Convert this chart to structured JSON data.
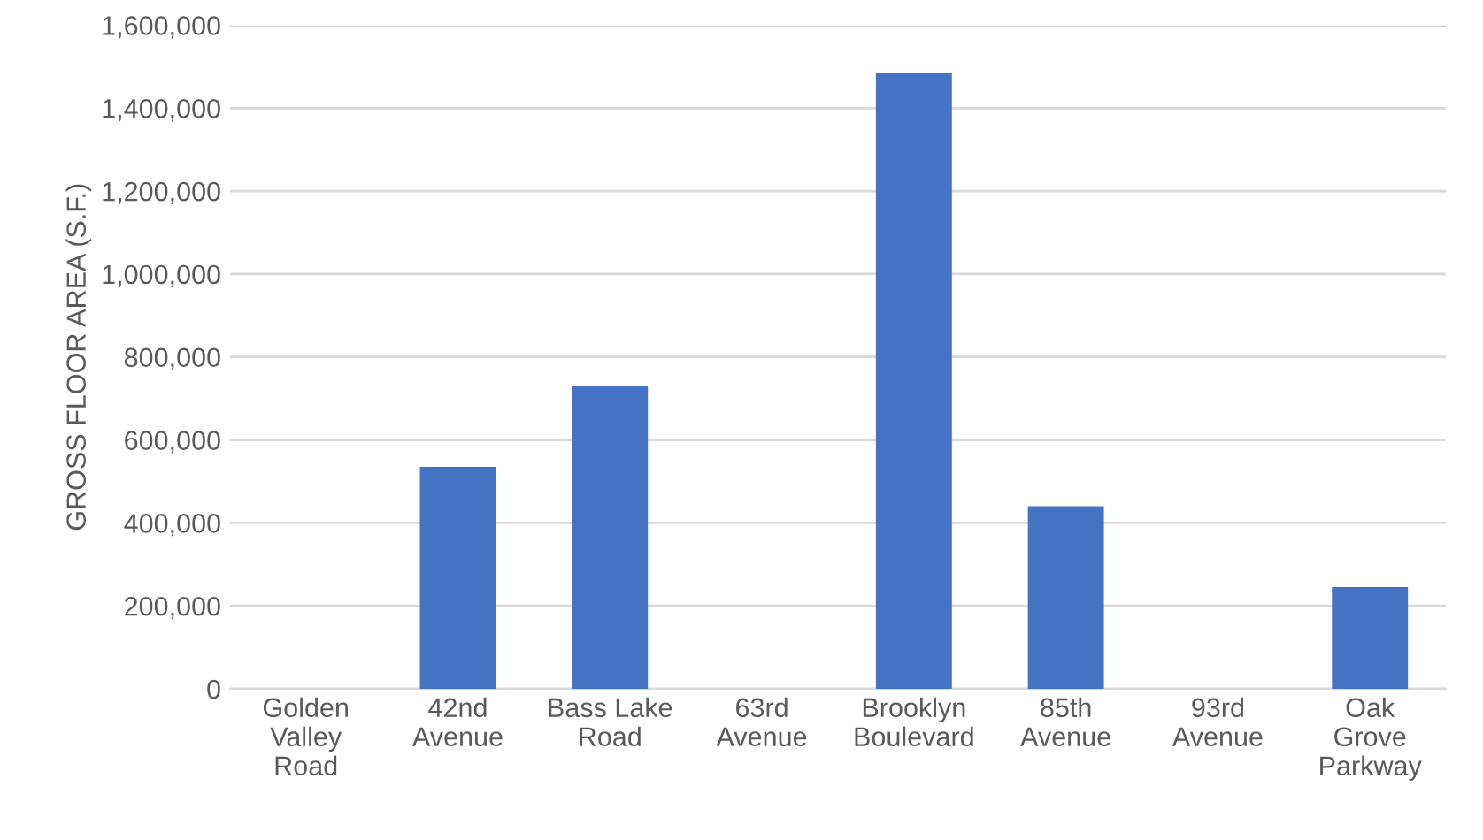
{
  "chart_data": {
    "type": "bar",
    "ylabel": "GROSS FLOOR AREA (S.F.)",
    "categories": [
      "Golden\nValley\nRoad",
      "42nd\nAvenue",
      "Bass Lake\nRoad",
      "63rd\nAvenue",
      "Brooklyn\nBoulevard",
      "85th\nAvenue",
      "93rd\nAvenue",
      "Oak\nGrove\nParkway"
    ],
    "values": [
      null,
      535000,
      730000,
      null,
      1485000,
      440000,
      null,
      245000
    ],
    "color": "#4472c4",
    "ylim": [
      0,
      1600000
    ],
    "yticks": [
      0,
      {
        "value": 200000,
        "label": "200,000"
      },
      {
        "value": 400000,
        "label": "400,000"
      },
      {
        "value": 600000,
        "label": "600,000"
      },
      {
        "value": 800000,
        "label": "800,000"
      },
      {
        "value": 1000000,
        "label": "1,000,000"
      },
      {
        "value": 1200000,
        "label": "1,200,000"
      },
      {
        "value": 1400000,
        "label": "1,400,000"
      },
      {
        "value": 1600000,
        "label": "1,600,000"
      }
    ],
    "grid": "y"
  }
}
